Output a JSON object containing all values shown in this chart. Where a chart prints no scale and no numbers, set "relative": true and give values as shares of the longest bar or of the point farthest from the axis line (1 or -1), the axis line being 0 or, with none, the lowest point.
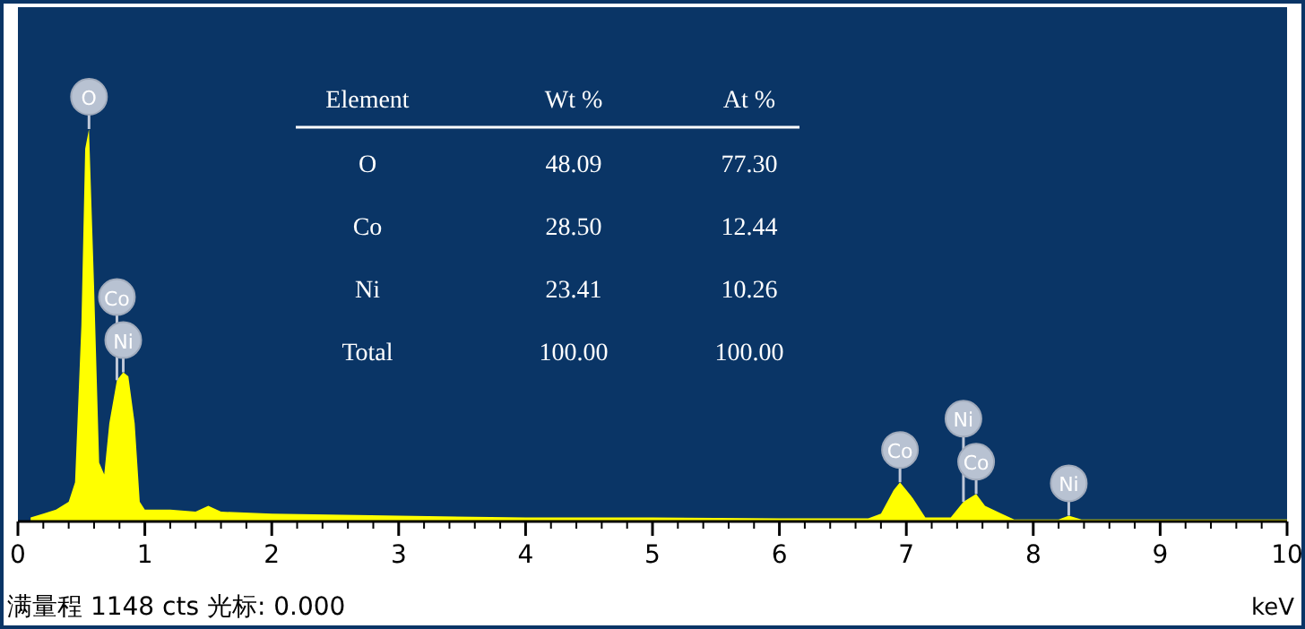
{
  "chart_data": {
    "type": "area",
    "relative": true,
    "color": "#ffff00",
    "xlabel": "keV",
    "xlim": [
      0,
      10
    ],
    "xticks": [
      0,
      1,
      2,
      3,
      4,
      5,
      6,
      7,
      8,
      9,
      10
    ],
    "x": [
      0.1,
      0.2,
      0.3,
      0.4,
      0.45,
      0.5,
      0.53,
      0.56,
      0.6,
      0.64,
      0.68,
      0.72,
      0.78,
      0.83,
      0.87,
      0.92,
      0.96,
      1.0,
      1.2,
      1.4,
      1.5,
      1.6,
      2,
      3,
      4,
      5,
      6,
      6.7,
      6.8,
      6.9,
      6.95,
      7.05,
      7.15,
      7.35,
      7.45,
      7.55,
      7.62,
      7.75,
      7.85,
      8.2,
      8.28,
      8.38,
      9,
      10
    ],
    "values": [
      0.01,
      0.02,
      0.03,
      0.05,
      0.1,
      0.5,
      0.95,
      1.0,
      0.6,
      0.15,
      0.12,
      0.25,
      0.36,
      0.38,
      0.37,
      0.25,
      0.05,
      0.03,
      0.03,
      0.025,
      0.04,
      0.025,
      0.02,
      0.015,
      0.01,
      0.01,
      0.008,
      0.008,
      0.02,
      0.08,
      0.1,
      0.06,
      0.01,
      0.01,
      0.05,
      0.07,
      0.04,
      0.02,
      0.005,
      0.005,
      0.015,
      0.005,
      0.005,
      0.005
    ],
    "annotations": [
      "Element",
      "Wt %",
      "At %",
      "O",
      "48.09",
      "77.30",
      "Co",
      "28.50",
      "12.44",
      "Ni",
      "23.41",
      "10.26",
      "Total",
      "100.00",
      "100.00",
      "满量程 1148 cts 光标: 0.000",
      {
        "text": "O",
        "x": 0.56,
        "y": 1.0
      },
      {
        "text": "Ni",
        "x": 0.83,
        "y": 0.38
      },
      {
        "text": "Co",
        "x": 0.78,
        "y": 0.36
      },
      {
        "text": "Co",
        "x": 6.95,
        "y": 0.1
      },
      {
        "text": "Co",
        "x": 7.55,
        "y": 0.07
      },
      {
        "text": "Ni",
        "x": 7.45,
        "y": 0.05
      },
      {
        "text": "Ni",
        "x": 8.28,
        "y": 0.015
      }
    ]
  }
}
